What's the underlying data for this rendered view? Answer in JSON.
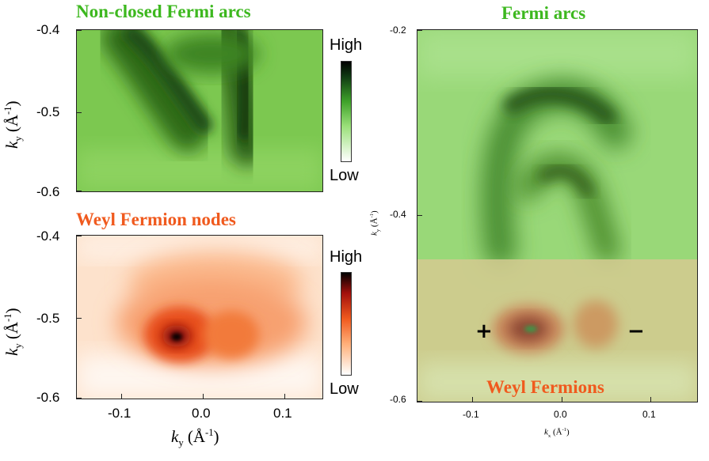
{
  "panels": {
    "top_left": {
      "title": "Non-closed Fermi arcs",
      "ylabel_var": "k",
      "ylabel_sub": "y",
      "ylabel_unit_open": " (Å",
      "ylabel_unit_sup": "-1",
      "ylabel_unit_close": ")",
      "yticks": [
        "-0.4",
        "-0.5",
        "-0.6"
      ],
      "colorbar_high": "High",
      "colorbar_low": "Low",
      "colormap": [
        "#ffffff",
        "#9be07a",
        "#3fa22a",
        "#0f3a12",
        "#000000"
      ]
    },
    "bottom_left": {
      "title": "Weyl Fermion nodes",
      "ylabel_var": "k",
      "ylabel_sub": "y",
      "ylabel_unit_open": " (Å",
      "ylabel_unit_sup": "-1",
      "ylabel_unit_close": ")",
      "yticks": [
        "-0.4",
        "-0.5",
        "-0.6"
      ],
      "xticks": [
        "-0.1",
        "0.0",
        "0.1"
      ],
      "xlabel_var": "k",
      "xlabel_sub": "y",
      "xlabel_unit_open": " (Å",
      "xlabel_unit_sup": "-1",
      "xlabel_unit_close": ")",
      "colorbar_high": "High",
      "colorbar_low": "Low",
      "colormap": [
        "#ffffff",
        "#ffb07a",
        "#f05a1e",
        "#a3100c",
        "#000000"
      ]
    },
    "right": {
      "title": "Fermi arcs",
      "overlay_label": "Weyl Fermions",
      "yticks": [
        "-0.2",
        "-0.4",
        "-0.6"
      ],
      "xticks": [
        "-0.1",
        "0.0",
        "0.1"
      ],
      "ylabel_var": "k",
      "ylabel_sub": "y",
      "ylabel_unit_open": " (Å",
      "ylabel_unit_sup": "-1",
      "ylabel_unit_close": ")",
      "xlabel_var": "k",
      "xlabel_sub": "x",
      "xlabel_unit_open": " (Å",
      "xlabel_unit_sup": "-1",
      "xlabel_unit_close": ")",
      "plus_sign": "+",
      "minus_sign": "−"
    }
  },
  "colors": {
    "green_title": "#3db81f",
    "orange_title": "#f05a1e"
  }
}
